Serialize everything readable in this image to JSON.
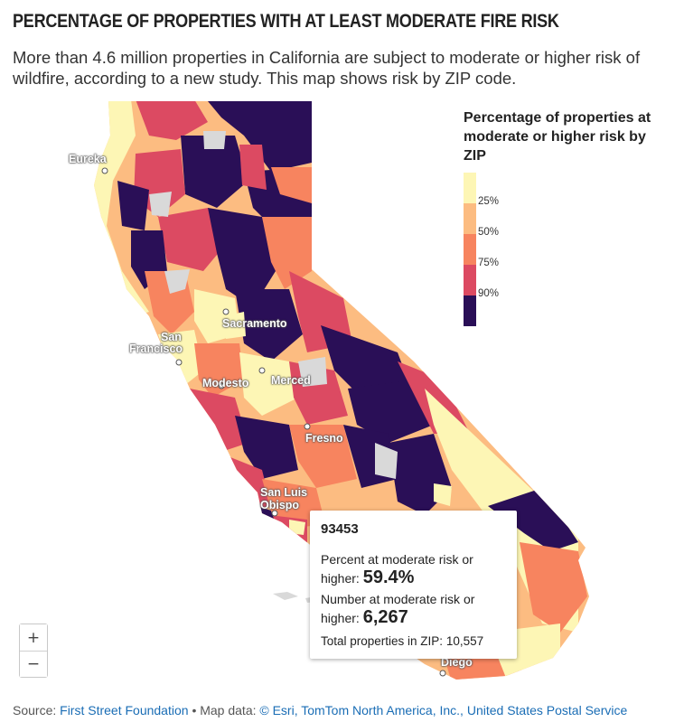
{
  "header": {
    "title": "PERCENTAGE OF PROPERTIES WITH AT LEAST MODERATE FIRE RISK",
    "subtitle": "More than 4.6 million properties in California are subject to moderate or higher risk of wildfire, according to a new study. This map shows risk by ZIP code."
  },
  "legend": {
    "title": "Percentage of properties at moderate or higher risk by ZIP",
    "ticks": [
      "25%",
      "50%",
      "75%",
      "90%"
    ],
    "colors": [
      "#fdf6b5",
      "#fcbc81",
      "#f7845f",
      "#dc4a62",
      "#2a0f57"
    ]
  },
  "map": {
    "cities": {
      "eureka": "Eureka",
      "sacramento": "Sacramento",
      "san_francisco_1": "San",
      "san_francisco_2": "Francisco",
      "modesto": "Modesto",
      "merced": "Merced",
      "fresno": "Fresno",
      "san_luis_obispo_1": "San Luis",
      "san_luis_obispo_2": "Obispo",
      "san_diego_partial": "Diego"
    },
    "colors": {
      "no_data": "#d9d9d9",
      "marker": "#ffffff"
    }
  },
  "zoom": {
    "in_label": "+",
    "out_label": "−"
  },
  "popup": {
    "zip": "93453",
    "percent_label_1": "Percent at moderate risk or",
    "percent_label_2": "higher:",
    "percent_value": "59.4%",
    "number_label_1": "Number at moderate risk or",
    "number_label_2": "higher:",
    "number_value": "6,267",
    "total_label": "Total properties in ZIP:",
    "total_value": "10,557"
  },
  "source": {
    "prefix": "Source:",
    "provider": "First Street Foundation",
    "separator": "• Map data:",
    "map_data": "© Esri, TomTom North America, Inc., United States Postal Service"
  }
}
